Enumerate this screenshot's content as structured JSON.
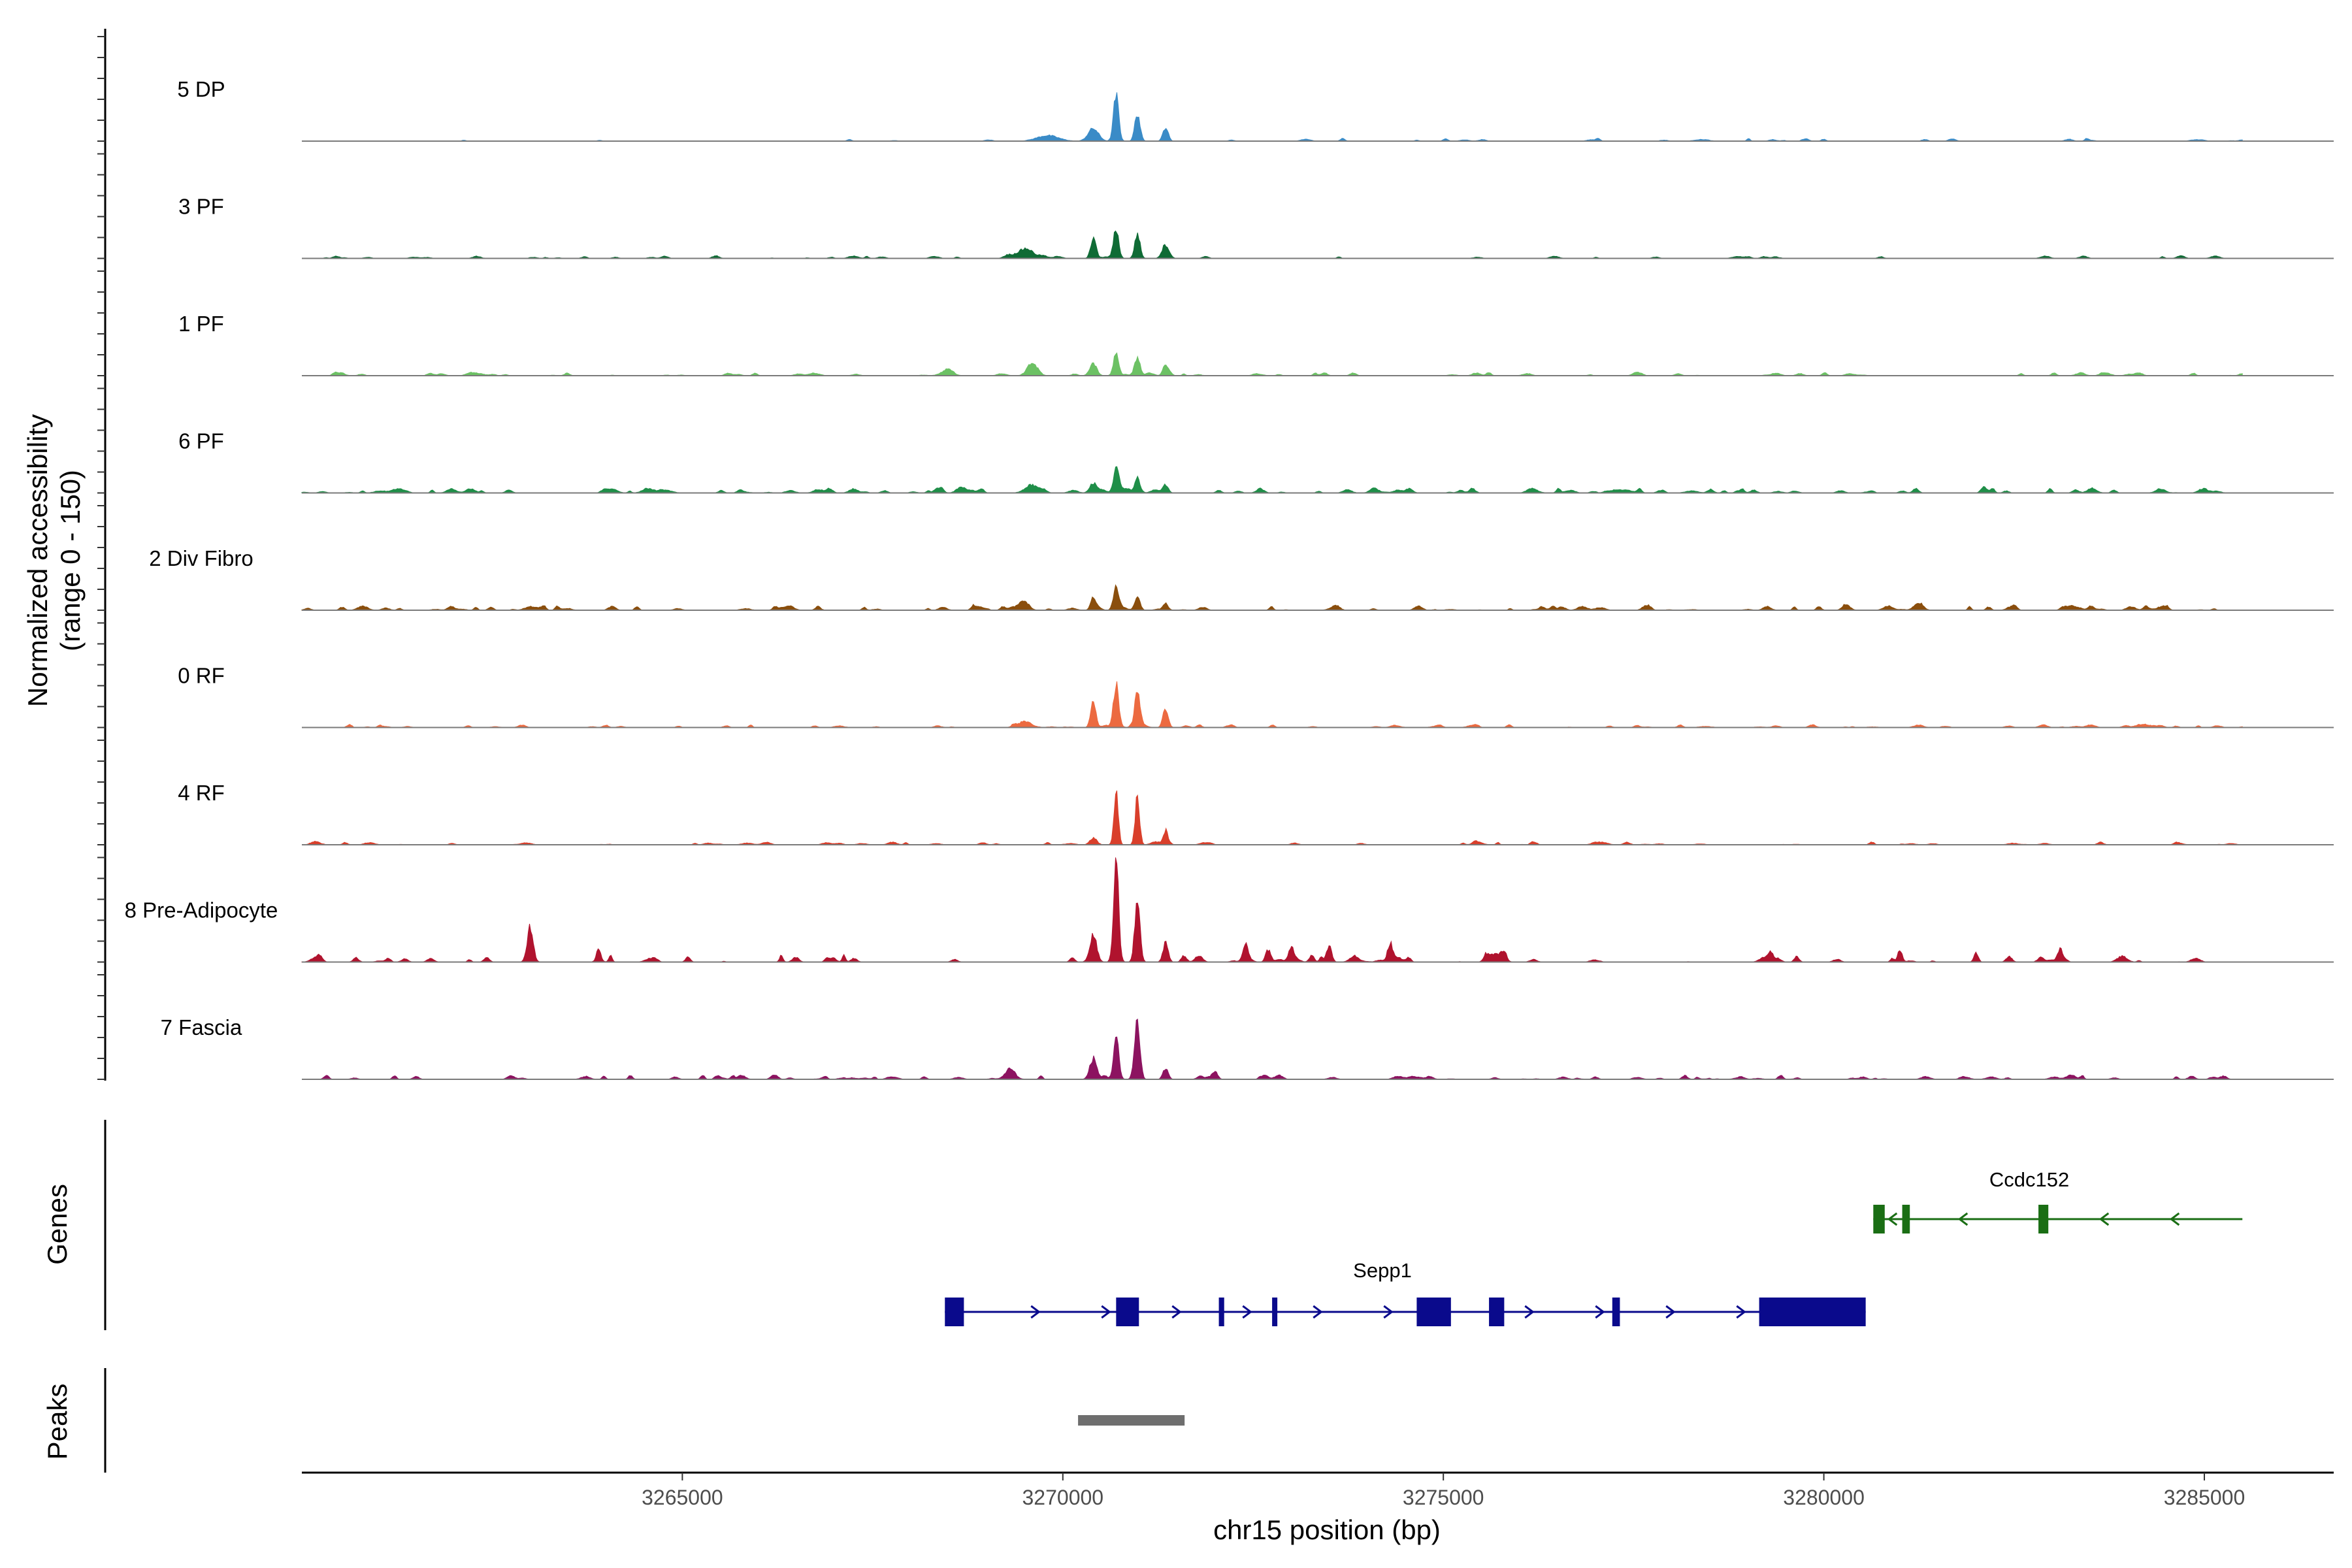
{
  "chart_data": {
    "type": "area",
    "y_axis_title_line1": "Normalized accessibility",
    "y_axis_title_line2": "(range 0 - 150)",
    "y_range": [
      0,
      150
    ],
    "x_axis_title": "chr15 position (bp)",
    "x_range": [
      3260000,
      3286700
    ],
    "x_ticks": [
      3265000,
      3270000,
      3275000,
      3280000,
      3285000
    ],
    "x_tick_labels": [
      "3265000",
      "3270000",
      "3275000",
      "3280000",
      "3285000"
    ],
    "coverage_start": 3260000,
    "coverage_end": 3285500,
    "tracks": [
      {
        "name": "5 DP",
        "color": "#3a8bc7",
        "peaks": [
          [
            3270700,
            6,
            65
          ],
          [
            3270980,
            6,
            40
          ],
          [
            3271350,
            6,
            20
          ],
          [
            3270400,
            12,
            18
          ],
          [
            3269800,
            25,
            8
          ]
        ],
        "noise": 4,
        "noise_density": 0.18
      },
      {
        "name": "3 PF",
        "color": "#0f6b35",
        "peaks": [
          [
            3270700,
            6,
            42
          ],
          [
            3270400,
            6,
            30
          ],
          [
            3270980,
            6,
            36
          ],
          [
            3271350,
            8,
            20
          ],
          [
            3269500,
            20,
            12
          ]
        ],
        "noise": 4,
        "noise_density": 0.2
      },
      {
        "name": "1 PF",
        "color": "#6cc164",
        "peaks": [
          [
            3270700,
            6,
            34
          ],
          [
            3270980,
            6,
            26
          ],
          [
            3270400,
            8,
            18
          ],
          [
            3271350,
            6,
            16
          ],
          [
            3269600,
            12,
            14
          ],
          [
            3268500,
            10,
            10
          ]
        ],
        "noise": 5,
        "noise_density": 0.3
      },
      {
        "name": "6 PF",
        "color": "#1f8e48",
        "peaks": [
          [
            3270700,
            6,
            36
          ],
          [
            3270400,
            8,
            14
          ],
          [
            3270980,
            6,
            22
          ],
          [
            3271350,
            6,
            12
          ],
          [
            3269600,
            16,
            10
          ],
          [
            3268400,
            6,
            8
          ]
        ],
        "noise": 7,
        "noise_density": 0.4
      },
      {
        "name": "2 Div Fibro",
        "color": "#8a4e0d",
        "peaks": [
          [
            3270700,
            6,
            34
          ],
          [
            3270400,
            6,
            18
          ],
          [
            3270980,
            6,
            20
          ],
          [
            3269500,
            10,
            12
          ],
          [
            3271350,
            6,
            10
          ]
        ],
        "noise": 6,
        "noise_density": 0.4
      },
      {
        "name": "0 RF",
        "color": "#ec6a40",
        "peaks": [
          [
            3270700,
            6,
            62
          ],
          [
            3270980,
            6,
            55
          ],
          [
            3270400,
            6,
            35
          ],
          [
            3271350,
            6,
            28
          ],
          [
            3269500,
            16,
            8
          ]
        ],
        "noise": 4,
        "noise_density": 0.35
      },
      {
        "name": "4 RF",
        "color": "#d93f2b",
        "peaks": [
          [
            3270700,
            5,
            80
          ],
          [
            3270980,
            5,
            72
          ],
          [
            3271350,
            5,
            18
          ],
          [
            3270400,
            8,
            10
          ]
        ],
        "noise": 4,
        "noise_density": 0.35
      },
      {
        "name": "8 Pre-Adipocyte",
        "color": "#b0132e",
        "peaks": [
          [
            3270700,
            6,
            140
          ],
          [
            3270980,
            6,
            90
          ],
          [
            3270400,
            8,
            38
          ],
          [
            3271350,
            6,
            28
          ],
          [
            3263000,
            7,
            50
          ],
          [
            3263900,
            4,
            12
          ],
          [
            3272400,
            6,
            20
          ],
          [
            3272700,
            6,
            18
          ],
          [
            3273000,
            6,
            22
          ],
          [
            3273500,
            6,
            22
          ],
          [
            3274300,
            6,
            26
          ],
          [
            3275800,
            5,
            12
          ],
          [
            3279300,
            5,
            14
          ],
          [
            3281000,
            5,
            18
          ],
          [
            3282000,
            5,
            14
          ],
          [
            3283100,
            5,
            12
          ],
          [
            3266300,
            4,
            10
          ]
        ],
        "noise": 10,
        "noise_density": 0.28
      },
      {
        "name": "7 Fascia",
        "color": "#8c1360",
        "peaks": [
          [
            3270980,
            6,
            85
          ],
          [
            3270700,
            6,
            60
          ],
          [
            3270400,
            8,
            30
          ],
          [
            3271350,
            6,
            16
          ],
          [
            3269300,
            12,
            12
          ],
          [
            3272000,
            6,
            12
          ]
        ],
        "noise": 6,
        "noise_density": 0.45
      }
    ],
    "genes": [
      {
        "name": "Sepp1",
        "color": "#0a0a8c",
        "strand": "+",
        "start": 3268450,
        "end": 3280550,
        "exons": [
          [
            3268450,
            3268700
          ],
          [
            3270700,
            3271000
          ],
          [
            3272050,
            3272120
          ],
          [
            3272750,
            3272800
          ],
          [
            3274650,
            3275100
          ],
          [
            3275600,
            3275800
          ],
          [
            3277220,
            3277320
          ],
          [
            3279150,
            3280550
          ]
        ]
      },
      {
        "name": "Ccdc152",
        "color": "#1a6e14",
        "strand": "-",
        "start": 3280650,
        "end": 3285500,
        "exons": [
          [
            3280650,
            3280800
          ],
          [
            3281030,
            3281130
          ],
          [
            3282820,
            3282950
          ]
        ]
      }
    ],
    "peaks_track_title": "Peaks",
    "peaks": [
      [
        3270200,
        3271600
      ]
    ],
    "peak_color": "#6e6e6e",
    "genes_track_title": "Genes"
  }
}
